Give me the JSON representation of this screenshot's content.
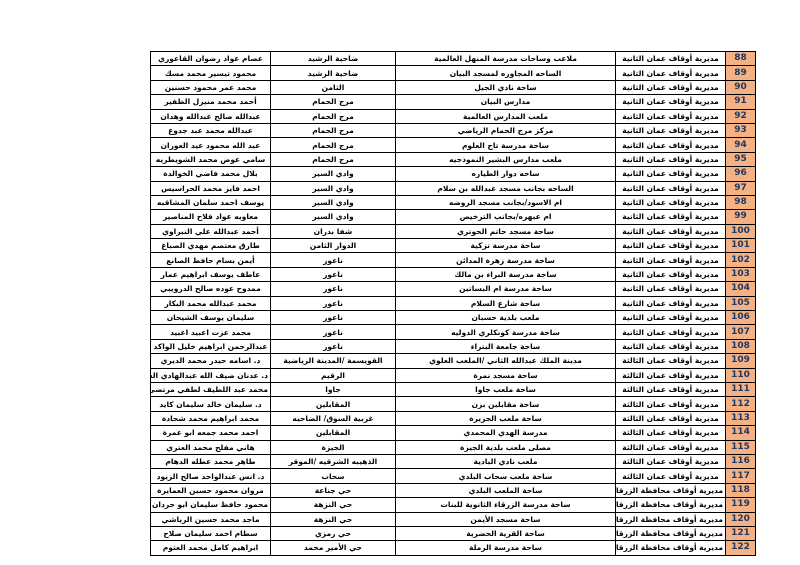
{
  "table": {
    "rows": [
      [
        88,
        "مديرية أوقاف عمان الثانية",
        "ملاعب وساحات مدرسة المنهل العالمية",
        "ضاحية الرشيد",
        "عصام عواد رضوان القاعوري"
      ],
      [
        89,
        "مديرية أوقاف عمان الثانية",
        "الساحه المجاوره لمسجد البيان",
        "ضاحية الرشيد",
        "محمود تيسير محمد مسك"
      ],
      [
        90,
        "مديرية أوقاف عمان الثانية",
        "ساحة نادي الجيل",
        "الثامن",
        "محمد عمر محمود حسنين"
      ],
      [
        91,
        "مديرية أوقاف عمان الثانية",
        "مدارس البيان",
        "مرج الحمام",
        "أحمد محمد منيزل الظفير"
      ],
      [
        92,
        "مديرية أوقاف عمان الثانية",
        "ملعب المدارس العالمية",
        "مرج الحمام",
        "عبدالله صالح عبدالله وهدان"
      ],
      [
        93,
        "مديرية أوقاف عمان الثانية",
        "مركز مرج الحمام الرياضي",
        "مرج الحمام",
        "عبدالله محمد عبد جدوع"
      ],
      [
        94,
        "مديرية أوقاف عمان الثانية",
        "ساحة مدرسة تاج العلوم",
        "مرج الحمام",
        "عبد الله محمود عيد العوران"
      ],
      [
        95,
        "مديرية أوقاف عمان الثانية",
        "ملعب مدارس البشير النموذجيه",
        "مرج الحمام",
        "سامي عوض محمد الشويطريه"
      ],
      [
        96,
        "مديرية أوقاف عمان الثانية",
        "ساحه دوار الطياره",
        "وادي السير",
        "بلال محمد فاضي الخوالدة"
      ],
      [
        97,
        "مديرية أوقاف عمان الثانية",
        "الساحه بجانب مسجد عبدالله بن سلام",
        "وادي السير",
        "احمد فايز محمد الحراسيس"
      ],
      [
        98,
        "مديرية أوقاف عمان الثانية",
        "ام الاسود/بجانب مسجد الروضه",
        "وادي السير",
        "يوسف احمد سلمان المشاقبه"
      ],
      [
        99,
        "مديرية أوقاف عمان الثانية",
        "ام عبهره/بجانب الترخيص",
        "وادي السير",
        "معاويه عواد فلاح المناصير"
      ],
      [
        100,
        "مديرية أوقاف عمان الثانية",
        "ساحة مسجد حاتم الحوتري",
        "شفا بدران",
        "أحمد عبدالله علي النبراوي"
      ],
      [
        101,
        "مديرية أوقاف عمان الثانية",
        "ساحة مدرسة تزكية",
        "الدوار الثامن",
        "طارق معتصم مهدي الصباغ"
      ],
      [
        102,
        "مديرية أوقاف عمان الثانية",
        "ساحة مدرسة زهرة المدائن",
        "ناعور",
        "أيمن بسام حافظ الصانع"
      ],
      [
        103,
        "مديرية أوقاف عمان الثانية",
        "ساحة مدرسة البراء بن مالك",
        "ناعور",
        "عاطف يوسف ابراهيم عمار"
      ],
      [
        104,
        "مديرية أوقاف عمان الثانية",
        "ساحة مدرسة ام البساتين",
        "ناعور",
        "ممدوح عوده صالح الدرويبي"
      ],
      [
        105,
        "مديرية أوقاف عمان الثانية",
        "ساحة شارع السلام",
        "ناعور",
        "محمد عبدالله محمد البكار"
      ],
      [
        106,
        "مديرية أوقاف عمان الثانية",
        "ملعب بلدية حسبان",
        "ناعور",
        "سليمان يوسف الشيحان"
      ],
      [
        107,
        "مديرية أوقاف عمان الثانية",
        "ساحة مدرسة كونكلري الدوليه",
        "ناعور",
        "محمد عزت اعبيد اعبيد"
      ],
      [
        108,
        "مديرية أوقاف عمان الثانية",
        "ساحة جامعة البتراء",
        "ناعور",
        "عبدالرحمن ابراهيم خليل الواكد"
      ],
      [
        109,
        "مديرية أوقاف عمان الثالثة",
        "مدينة الملك عبدالله الثاني /الملعب العلوي",
        "القويسمة /المدينة الرياضية",
        "د. اسامه حيدر محمد الديري"
      ],
      [
        110,
        "مديرية أوقاف عمان الثالثة",
        "ساحة مسجد نمرة",
        "الرقيم",
        "د. عدنان ضيف الله عبدالهادي الشوابكة"
      ],
      [
        111,
        "مديرية أوقاف عمان الثالثة",
        "ساحة ملعب جاوا",
        "جاوا",
        "محمد عبد اللطيف لطفي مرتضى"
      ],
      [
        112,
        "مديرية أوقاف عمان الثالثة",
        "ساحة مقابلين بزن",
        "المقابلين",
        "د. سليمان خالد سليمان كايد"
      ],
      [
        113,
        "مديرية أوقاف عمان الثالثة",
        "ساحة ملعب الجزيرة",
        "غربية السوق/ الضاحيه",
        "محمد ابراهيم محمد شحادة"
      ],
      [
        114,
        "مديرية أوقاف عمان الثالثة",
        "مدرسة الهدي المحمدي",
        "المقابلين",
        "احمد محمد جمعه ابو عمرة"
      ],
      [
        115,
        "مديرية أوقاف عمان الثالثة",
        "مصلى ملعب بلدية الجيزة",
        "الجيزة",
        "هاني مفلح محمد العتري"
      ],
      [
        116,
        "مديرية أوقاف عمان الثالثة",
        "ملعب نادي البادية",
        "الذهيبه الشرقيه /الموقر",
        "طاهر محمد عطله الدهام"
      ],
      [
        117,
        "مديرية أوقاف عمان الثالثة",
        "ساحة ملعب سحاب البلدي",
        "سحاب",
        "د. انس عبدالواحد صالح الزيود"
      ],
      [
        118,
        "مديرية أوقاف محافظة الزرقاء",
        "ساحة الملعب البلدي",
        "حي جناعة",
        "مروان محمود حسين العمايرة"
      ],
      [
        119,
        "مديرية أوقاف محافظة الزرقاء",
        "ساحة مدرسة الزرقاء الثانوية للبنات",
        "حي النزهة",
        "محمود حافظ سليمان ابو حردان"
      ],
      [
        120,
        "مديرية أوقاف محافظة الزرقاء",
        "ساحة مسجد الأيمن",
        "حي النزهة",
        "ماجد محمد حسين الرياشي"
      ],
      [
        121,
        "مديرية أوقاف محافظة الزرقاء",
        "ساحة القرية الحضرية",
        "حي رمزي",
        "سطام احمد سليمان صلاح"
      ],
      [
        122,
        "مديرية أوقاف محافظة الزرقاء",
        "ساحة مدرسة الرملة",
        "حي الأمير محمد",
        "ابراهيم كامل محمد العتوم"
      ]
    ]
  }
}
